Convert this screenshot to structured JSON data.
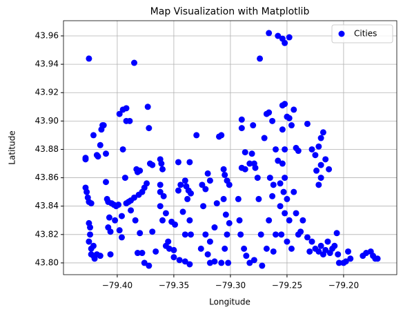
{
  "chart_data": {
    "type": "scatter",
    "title": "Map Visualization with Matplotlib",
    "x_label": "Longitude",
    "y_label": "Latitude",
    "xlim": [
      -79.4475,
      -79.153
    ],
    "ylim": [
      43.7917,
      43.9707
    ],
    "xticks": [
      {
        "value": -79.4,
        "label": "−79.40"
      },
      {
        "value": -79.35,
        "label": "−79.35"
      },
      {
        "value": -79.3,
        "label": "−79.30"
      },
      {
        "value": -79.25,
        "label": "−79.25"
      },
      {
        "value": -79.2,
        "label": "−79.20"
      }
    ],
    "yticks": [
      {
        "value": 43.8,
        "label": "43.80"
      },
      43.82,
      43.84,
      43.86,
      43.88,
      {
        "value": 43.9,
        "label": "43.90"
      },
      43.92,
      43.94,
      43.96
    ],
    "grid": true,
    "legend": "upper right",
    "series": [
      {
        "name": "Cities",
        "color": "#0000ff",
        "x": [
          -79.425,
          -79.428,
          -79.428,
          -79.428,
          -79.427,
          -79.426,
          -79.425,
          -79.423,
          -79.425,
          -79.424,
          -79.424,
          -79.425,
          -79.423,
          -79.423,
          -79.421,
          -79.42,
          -79.418,
          -79.415,
          -79.421,
          -79.421,
          -79.418,
          -79.417,
          -79.414,
          -79.413,
          -79.412,
          -79.415,
          -79.41,
          -79.41,
          -79.409,
          -79.408,
          -79.407,
          -79.408,
          -79.406,
          -79.406,
          -79.405,
          -79.403,
          -79.401,
          -79.399,
          -79.398,
          -79.395,
          -79.392,
          -79.395,
          -79.392,
          -79.389,
          -79.393,
          -79.392,
          -79.39,
          -79.388,
          -79.385,
          -79.383,
          -79.382,
          -79.381,
          -79.378,
          -79.376,
          -79.374,
          -79.38,
          -79.385,
          -79.396,
          -79.402,
          -79.398,
          -79.396,
          -79.388,
          -79.384,
          -79.38,
          -79.382,
          -79.378,
          -79.376,
          -79.372,
          -79.373,
          -79.372,
          -79.371,
          -79.369,
          -79.369,
          -79.366,
          -79.362,
          -79.361,
          -79.36,
          -79.362,
          -79.362,
          -79.359,
          -79.362,
          -79.357,
          -79.36,
          -79.357,
          -79.354,
          -79.35,
          -79.352,
          -79.349,
          -79.346,
          -79.344,
          -79.342,
          -79.34,
          -79.339,
          -79.337,
          -79.335,
          -79.346,
          -79.336,
          -79.338,
          -79.336,
          -79.34,
          -79.335,
          -79.345,
          -79.34,
          -79.336,
          -79.35,
          -79.355,
          -79.33,
          -79.325,
          -79.322,
          -79.32,
          -79.318,
          -79.324,
          -79.322,
          -79.318,
          -79.326,
          -79.32,
          -79.318,
          -79.314,
          -79.31,
          -79.308,
          -79.306,
          -79.305,
          -79.303,
          -79.301,
          -79.306,
          -79.304,
          -79.301,
          -79.303,
          -79.305,
          -79.302,
          -79.308,
          -79.312,
          -79.314,
          -79.29,
          -79.29,
          -79.287,
          -79.29,
          -79.287,
          -79.283,
          -79.281,
          -79.279,
          -79.278,
          -79.276,
          -79.293,
          -79.292,
          -79.291,
          -79.288,
          -79.286,
          -79.283,
          -79.279,
          -79.275,
          -79.273,
          -79.272,
          -79.28,
          -79.274,
          -79.27,
          -79.268,
          -79.266,
          -79.263,
          -79.265,
          -79.263,
          -79.262,
          -79.266,
          -79.26,
          -79.268,
          -79.262,
          -79.266,
          -79.258,
          -79.254,
          -79.252,
          -79.248,
          -79.26,
          -79.258,
          -79.256,
          -79.254,
          -79.252,
          -79.25,
          -79.248,
          -79.246,
          -79.254,
          -79.252,
          -79.254,
          -79.252,
          -79.253,
          -79.25,
          -79.256,
          -79.252,
          -79.248,
          -79.255,
          -79.25,
          -79.246,
          -79.244,
          -79.242,
          -79.24,
          -79.244,
          -79.242,
          -79.24,
          -79.238,
          -79.236,
          -79.232,
          -79.228,
          -79.225,
          -79.222,
          -79.22,
          -79.218,
          -79.224,
          -79.22,
          -79.216,
          -79.213,
          -79.222,
          -79.22,
          -79.228,
          -79.225,
          -79.222,
          -79.22,
          -79.218,
          -79.216,
          -79.214,
          -79.212,
          -79.21,
          -79.208,
          -79.206,
          -79.205,
          -79.204,
          -79.2,
          -79.198,
          -79.196,
          -79.194,
          -79.23,
          -79.232,
          -79.183,
          -79.18,
          -79.176,
          -79.174,
          -79.172,
          -79.17
        ],
        "y": [
          43.944,
          43.874,
          43.873,
          43.853,
          43.85,
          43.846,
          43.843,
          43.842,
          43.828,
          43.825,
          43.82,
          43.815,
          43.81,
          43.806,
          43.805,
          43.803,
          43.806,
          43.805,
          43.812,
          43.89,
          43.876,
          43.875,
          43.894,
          43.897,
          43.897,
          43.883,
          43.877,
          43.857,
          43.845,
          43.843,
          43.832,
          43.825,
          43.822,
          43.806,
          43.842,
          43.841,
          43.84,
          43.841,
          43.905,
          43.908,
          43.909,
          43.88,
          43.9,
          43.9,
          43.86,
          43.842,
          43.843,
          43.844,
          43.846,
          43.866,
          43.864,
          43.848,
          43.85,
          43.853,
          43.856,
          43.865,
          43.941,
          43.833,
          43.83,
          43.823,
          43.818,
          43.837,
          43.83,
          43.821,
          43.807,
          43.807,
          43.8,
          43.798,
          43.91,
          43.895,
          43.87,
          43.869,
          43.822,
          43.808,
          43.873,
          43.87,
          43.866,
          43.855,
          43.85,
          43.847,
          43.84,
          43.835,
          43.83,
          43.812,
          43.81,
          43.809,
          43.829,
          43.827,
          43.851,
          43.855,
          43.836,
          43.858,
          43.854,
          43.851,
          43.849,
          43.871,
          43.871,
          43.845,
          43.83,
          43.82,
          43.82,
          43.802,
          43.801,
          43.799,
          43.804,
          43.815,
          43.89,
          43.855,
          43.852,
          43.863,
          43.858,
          43.84,
          43.82,
          43.815,
          43.81,
          43.806,
          43.8,
          43.801,
          43.889,
          43.89,
          43.866,
          43.862,
          43.858,
          43.855,
          43.845,
          43.834,
          43.828,
          43.82,
          43.81,
          43.8,
          43.8,
          43.842,
          43.825,
          43.901,
          43.895,
          43.878,
          43.867,
          43.866,
          43.87,
          43.877,
          43.87,
          43.867,
          43.86,
          43.845,
          43.83,
          43.82,
          43.81,
          43.805,
          43.8,
          43.802,
          43.845,
          43.82,
          43.798,
          43.897,
          43.944,
          43.888,
          43.905,
          43.906,
          43.9,
          43.86,
          43.847,
          43.855,
          43.83,
          43.82,
          43.81,
          43.808,
          43.962,
          43.96,
          43.958,
          43.955,
          43.959,
          43.88,
          43.872,
          43.856,
          43.911,
          43.912,
          43.903,
          43.902,
          43.897,
          43.894,
          43.88,
          43.87,
          43.86,
          43.85,
          43.845,
          43.84,
          43.835,
          43.83,
          43.82,
          43.815,
          43.81,
          43.908,
          43.881,
          43.879,
          43.85,
          43.835,
          43.82,
          43.822,
          43.83,
          43.898,
          43.88,
          43.876,
          43.882,
          43.888,
          43.892,
          43.865,
          43.869,
          43.873,
          43.866,
          43.855,
          43.86,
          43.815,
          43.81,
          43.808,
          43.812,
          43.806,
          43.809,
          43.815,
          43.807,
          43.81,
          43.812,
          43.821,
          43.806,
          43.8,
          43.8,
          43.801,
          43.808,
          43.803,
          43.808,
          43.818,
          43.805,
          43.807,
          43.808,
          43.805,
          43.803,
          43.803
        ]
      }
    ]
  }
}
